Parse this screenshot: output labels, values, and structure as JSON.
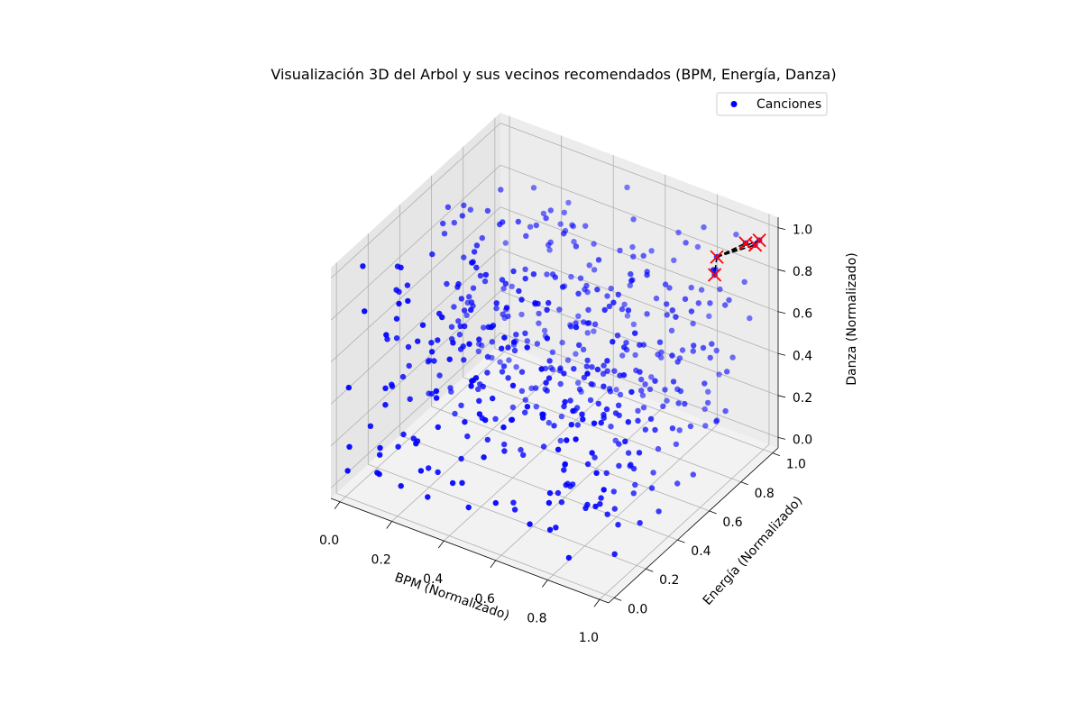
{
  "chart_data": {
    "type": "scatter3d",
    "title": "Visualización 3D del Arbol y sus vecinos recomendados (BPM, Energía, Danza)",
    "xlabel": "BPM (Normalizado)",
    "ylabel": "Energía (Normalizado)",
    "zlabel": "Danza (Normalizado)",
    "xlim": [
      0,
      1
    ],
    "ylim": [
      0,
      1
    ],
    "zlim": [
      0,
      1
    ],
    "xticks": [
      "0.0",
      "0.2",
      "0.4",
      "0.6",
      "0.8",
      "1.0"
    ],
    "yticks": [
      "0.0",
      "0.2",
      "0.4",
      "0.6",
      "0.8",
      "1.0"
    ],
    "zticks": [
      "0.0",
      "0.2",
      "0.4",
      "0.6",
      "0.8",
      "1.0"
    ],
    "grid": true,
    "legend": {
      "placement": "top-right",
      "entries": [
        "Canciones"
      ]
    },
    "series": [
      {
        "name": "Canciones",
        "color": "#0000ff",
        "marker": "circle",
        "alpha": 0.6,
        "count": 500,
        "distribution": "uniform random in unit cube"
      },
      {
        "marker": "x",
        "color": "#ff0000",
        "points": [
          {
            "x": 0.93,
            "y": 0.82,
            "z": 0.96
          },
          {
            "x": 0.94,
            "y": 0.79,
            "z": 0.9
          },
          {
            "x": 0.98,
            "y": 0.92,
            "z": 0.98
          },
          {
            "x": 0.99,
            "y": 0.99,
            "z": 0.95
          },
          {
            "x": 0.98,
            "y": 0.98,
            "z": 0.93
          }
        ]
      }
    ],
    "connections": {
      "color": "#000000",
      "style": "dashed",
      "from_index": 0,
      "to_indices": [
        1,
        2,
        3,
        4
      ]
    }
  }
}
